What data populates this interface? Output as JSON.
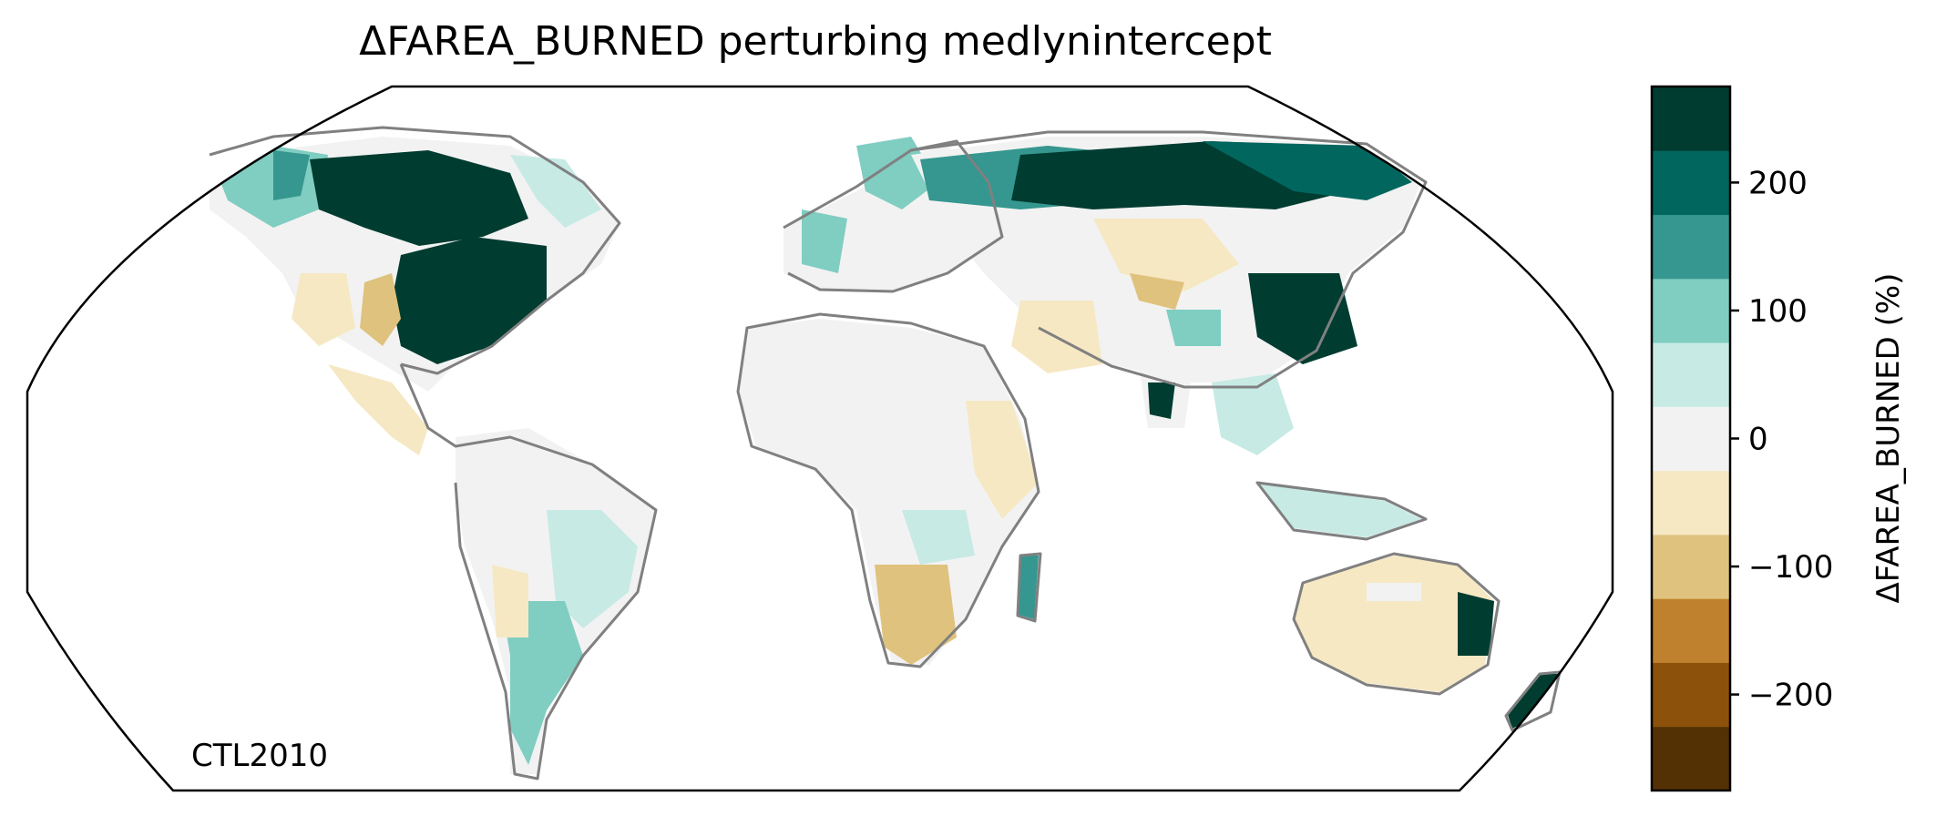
{
  "title": "ΔFAREA_BURNED perturbing medlynintercept",
  "run_label": "CTL2010",
  "colorbar": {
    "label": "ΔFAREA_BURNED (%)",
    "ticks": [
      {
        "value": 200,
        "label": "200"
      },
      {
        "value": 100,
        "label": "100"
      },
      {
        "value": 0,
        "label": "0"
      },
      {
        "value": -100,
        "label": "−100"
      },
      {
        "value": -200,
        "label": "−200"
      }
    ],
    "levels": [
      -275,
      -225,
      -175,
      -125,
      -75,
      -25,
      25,
      75,
      125,
      175,
      225,
      275
    ],
    "colors": [
      "#543005",
      "#8c510a",
      "#bf812d",
      "#dfc27d",
      "#f6e8c3",
      "#f2f2f2",
      "#c7eae5",
      "#80cdc1",
      "#35978f",
      "#01665e",
      "#003c30"
    ]
  },
  "chart_data": {
    "type": "heatmap",
    "title": "ΔFAREA_BURNED perturbing medlynintercept",
    "projection": "Robinson",
    "variable": "ΔFAREA_BURNED (%)",
    "range": [
      -275,
      275
    ],
    "regions": [
      {
        "name": "Eastern United States",
        "value": 260
      },
      {
        "name": "Canada boreal",
        "value": 250
      },
      {
        "name": "Western United States",
        "value": -50
      },
      {
        "name": "Amazon",
        "value": 0
      },
      {
        "name": "Southern South America",
        "value": 60
      },
      {
        "name": "Sahara",
        "value": 0
      },
      {
        "name": "Southern Africa",
        "value": -60
      },
      {
        "name": "Europe",
        "value": 60
      },
      {
        "name": "Siberia",
        "value": 240
      },
      {
        "name": "Eastern China",
        "value": 260
      },
      {
        "name": "Central Asia",
        "value": -40
      },
      {
        "name": "Australia",
        "value": -50
      },
      {
        "name": "Eastern Australia",
        "value": 250
      }
    ]
  }
}
